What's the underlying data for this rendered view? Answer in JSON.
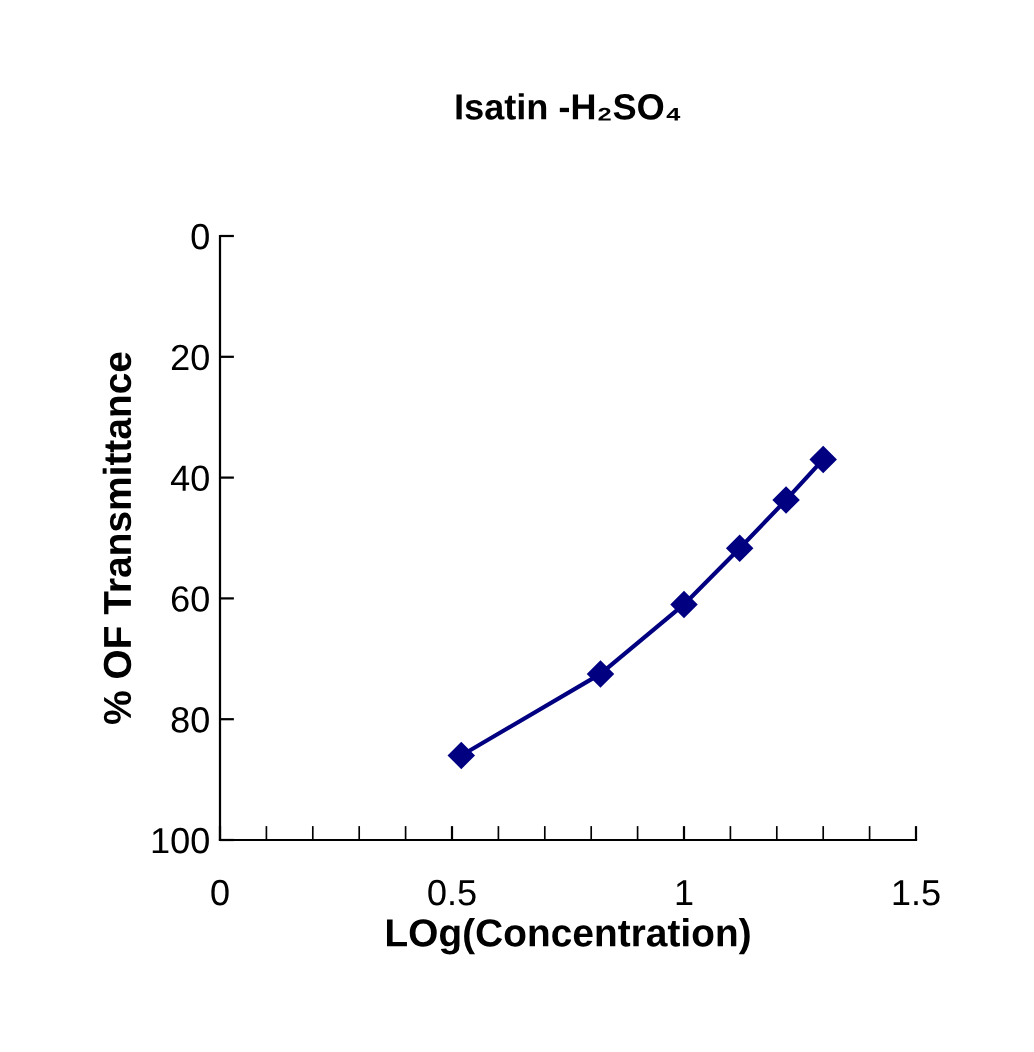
{
  "chart_data": {
    "type": "line",
    "title": "Isatin -H₂SO₄",
    "xlabel": "LOg(Concentration)",
    "ylabel": "% OF Transmittance",
    "x": [
      0.52,
      0.82,
      1.0,
      1.12,
      1.22,
      1.3
    ],
    "series": [
      {
        "color": "#000080",
        "values": [
          86,
          72.5,
          61,
          51.7,
          43.7,
          37
        ]
      }
    ],
    "xlim": [
      0,
      1.5
    ],
    "xticks": [
      0,
      0.5,
      1,
      1.5
    ],
    "ylim": [
      100,
      0
    ],
    "yticks": [
      0,
      20,
      40,
      60,
      80,
      100
    ],
    "marker": "diamond",
    "line_style": "solid",
    "grid": false,
    "legend": false
  }
}
